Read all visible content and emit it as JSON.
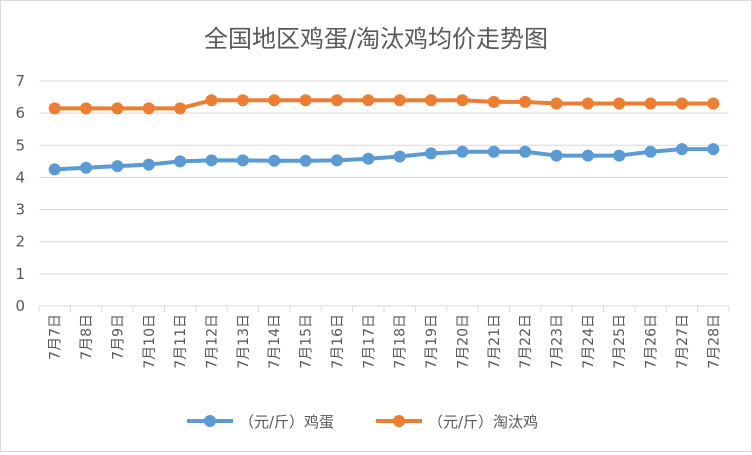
{
  "chart_data": {
    "type": "line",
    "title": "全国地区鸡蛋/淘汰鸡均价走势图",
    "categories": [
      "7月7日",
      "7月8日",
      "7月9日",
      "7月10日",
      "7月11日",
      "7月12日",
      "7月13日",
      "7月14日",
      "7月15日",
      "7月16日",
      "7月17日",
      "7月18日",
      "7月19日",
      "7月20日",
      "7月21日",
      "7月22日",
      "7月23日",
      "7月24日",
      "7月25日",
      "7月26日",
      "7月27日",
      "7月28日"
    ],
    "series": [
      {
        "name": "（元/斤）鸡蛋",
        "color": "#5b9bd5",
        "values": [
          4.25,
          4.3,
          4.35,
          4.4,
          4.5,
          4.53,
          4.53,
          4.52,
          4.52,
          4.53,
          4.58,
          4.65,
          4.75,
          4.8,
          4.8,
          4.8,
          4.68,
          4.68,
          4.68,
          4.8,
          4.88,
          4.88
        ]
      },
      {
        "name": "（元/斤）淘汰鸡",
        "color": "#ed7d31",
        "values": [
          6.15,
          6.15,
          6.15,
          6.15,
          6.15,
          6.4,
          6.4,
          6.4,
          6.4,
          6.4,
          6.4,
          6.4,
          6.4,
          6.4,
          6.35,
          6.35,
          6.3,
          6.3,
          6.3,
          6.3,
          6.3,
          6.3
        ]
      }
    ],
    "yticks": [
      "0",
      "1",
      "2",
      "3",
      "4",
      "5",
      "6",
      "7"
    ],
    "ylim": [
      0,
      7
    ],
    "grid": true,
    "legend_position": "bottom",
    "gridline_color": "#d9d9d9"
  }
}
